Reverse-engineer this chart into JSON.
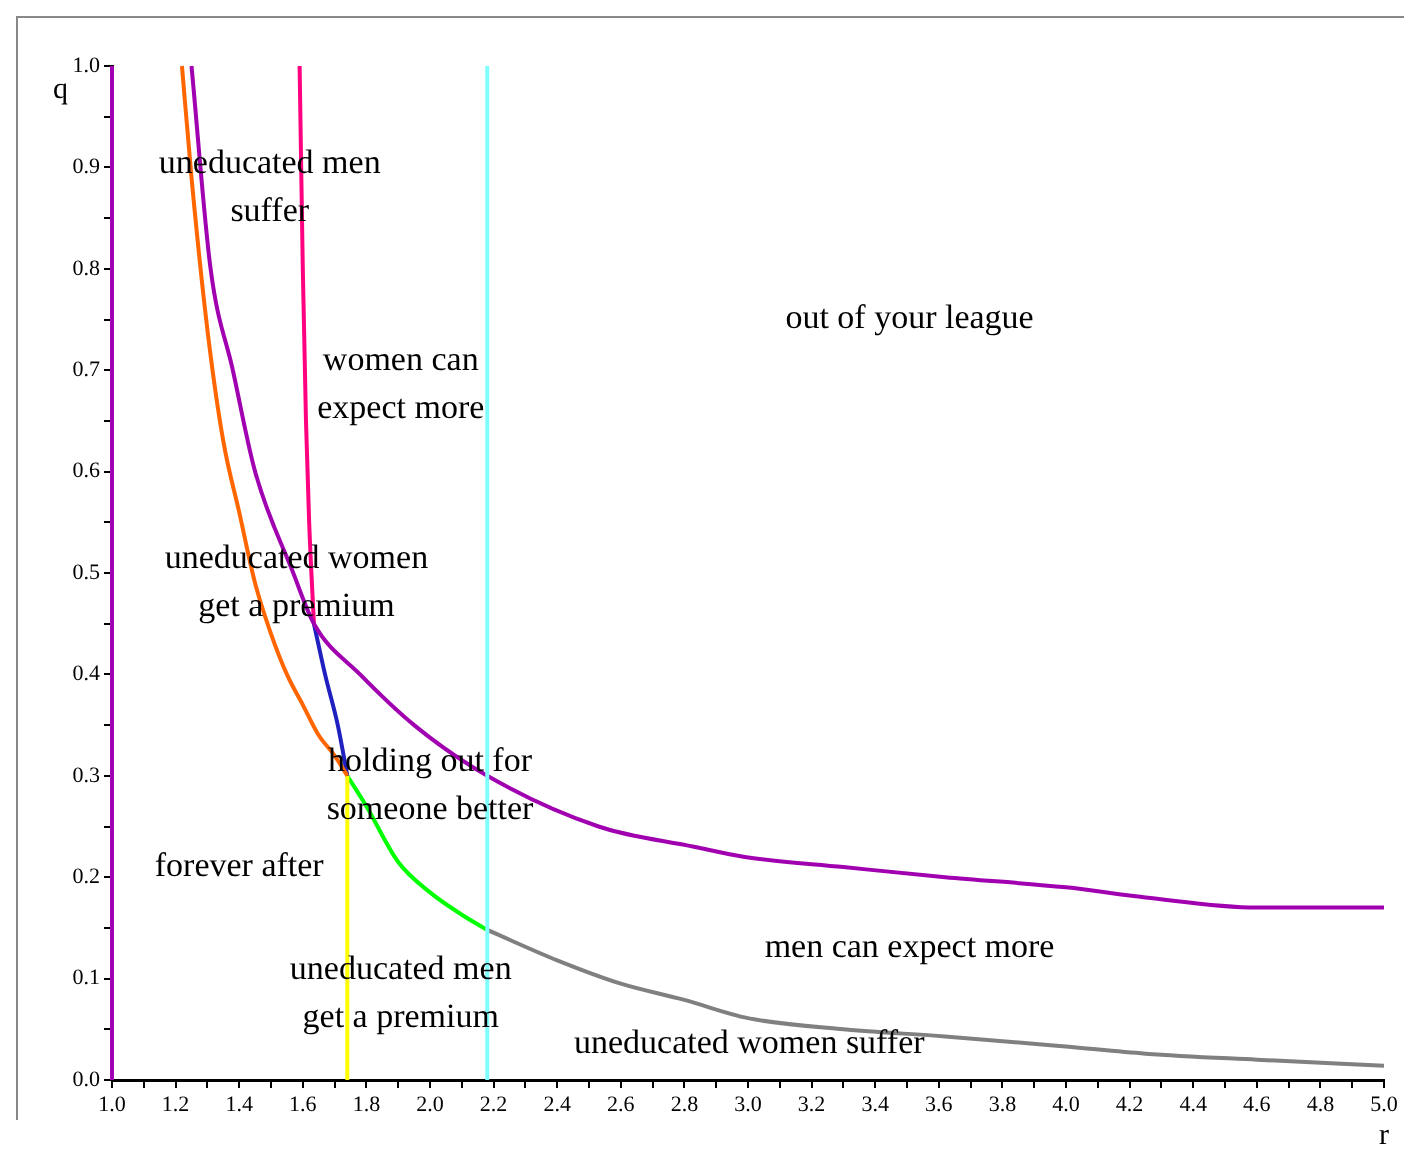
{
  "chart_data": {
    "type": "line",
    "xlabel": "r",
    "ylabel": "q",
    "xlim": [
      1.0,
      5.0
    ],
    "ylim": [
      0.0,
      1.0
    ],
    "xticks": [
      {
        "value": 1.0,
        "label": "1.0"
      },
      {
        "value": 1.1,
        "label": null
      },
      {
        "value": 1.2,
        "label": "1.2"
      },
      {
        "value": 1.3,
        "label": null
      },
      {
        "value": 1.4,
        "label": "1.4"
      },
      {
        "value": 1.5,
        "label": null
      },
      {
        "value": 1.6,
        "label": "1.6"
      },
      {
        "value": 1.7,
        "label": null
      },
      {
        "value": 1.8,
        "label": "1.8"
      },
      {
        "value": 1.9,
        "label": null
      },
      {
        "value": 2.0,
        "label": "2.0"
      },
      {
        "value": 2.1,
        "label": null
      },
      {
        "value": 2.2,
        "label": "2.2"
      },
      {
        "value": 2.3,
        "label": null
      },
      {
        "value": 2.4,
        "label": "2.4"
      },
      {
        "value": 2.5,
        "label": null
      },
      {
        "value": 2.6,
        "label": "2.6"
      },
      {
        "value": 2.7,
        "label": null
      },
      {
        "value": 2.8,
        "label": "2.8"
      },
      {
        "value": 2.9,
        "label": null
      },
      {
        "value": 3.0,
        "label": "3.0"
      },
      {
        "value": 3.1,
        "label": null
      },
      {
        "value": 3.2,
        "label": "3.2"
      },
      {
        "value": 3.3,
        "label": null
      },
      {
        "value": 3.4,
        "label": "3.4"
      },
      {
        "value": 3.5,
        "label": null
      },
      {
        "value": 3.6,
        "label": "3.6"
      },
      {
        "value": 3.7,
        "label": null
      },
      {
        "value": 3.8,
        "label": "3.8"
      },
      {
        "value": 3.9,
        "label": null
      },
      {
        "value": 4.0,
        "label": "4.0"
      },
      {
        "value": 4.1,
        "label": null
      },
      {
        "value": 4.2,
        "label": "4.2"
      },
      {
        "value": 4.3,
        "label": null
      },
      {
        "value": 4.4,
        "label": "4.4"
      },
      {
        "value": 4.5,
        "label": null
      },
      {
        "value": 4.6,
        "label": "4.6"
      },
      {
        "value": 4.7,
        "label": null
      },
      {
        "value": 4.8,
        "label": "4.8"
      },
      {
        "value": 4.9,
        "label": null
      },
      {
        "value": 5.0,
        "label": "5.0"
      }
    ],
    "yticks": [
      {
        "value": 0.0,
        "label": "0.0"
      },
      {
        "value": 0.05,
        "label": null
      },
      {
        "value": 0.1,
        "label": "0.1"
      },
      {
        "value": 0.15,
        "label": null
      },
      {
        "value": 0.2,
        "label": "0.2"
      },
      {
        "value": 0.25,
        "label": null
      },
      {
        "value": 0.3,
        "label": "0.3"
      },
      {
        "value": 0.35,
        "label": null
      },
      {
        "value": 0.4,
        "label": "0.4"
      },
      {
        "value": 0.45,
        "label": null
      },
      {
        "value": 0.5,
        "label": "0.5"
      },
      {
        "value": 0.55,
        "label": null
      },
      {
        "value": 0.6,
        "label": "0.6"
      },
      {
        "value": 0.65,
        "label": null
      },
      {
        "value": 0.7,
        "label": "0.7"
      },
      {
        "value": 0.75,
        "label": null
      },
      {
        "value": 0.8,
        "label": "0.8"
      },
      {
        "value": 0.85,
        "label": null
      },
      {
        "value": 0.9,
        "label": "0.9"
      },
      {
        "value": 0.95,
        "label": null
      },
      {
        "value": 1.0,
        "label": "1.0"
      }
    ],
    "grid": false,
    "legend": false,
    "series": [
      {
        "color": "#a000b0",
        "x": [
          1.0,
          1.0
        ],
        "values": [
          0.0,
          1.0
        ]
      },
      {
        "color": "#80ffff",
        "x": [
          2.18,
          2.18
        ],
        "values": [
          0.0,
          1.0
        ]
      },
      {
        "color": "#ff6600",
        "x": [
          1.22,
          1.25,
          1.3,
          1.35,
          1.4,
          1.45,
          1.5,
          1.55,
          1.6,
          1.65,
          1.7,
          1.74
        ],
        "values": [
          1.0,
          0.89,
          0.74,
          0.63,
          0.56,
          0.49,
          0.44,
          0.4,
          0.37,
          0.34,
          0.32,
          0.3
        ]
      },
      {
        "color": "#a000b0",
        "x": [
          1.25,
          1.31,
          1.38,
          1.45,
          1.57,
          1.635,
          1.78,
          1.95,
          2.18,
          2.53,
          2.83,
          2.99,
          3.3,
          3.62,
          4.0,
          4.25,
          4.6,
          5.0
        ],
        "values": [
          1.0,
          0.8,
          0.7,
          0.6,
          0.5,
          0.45,
          0.4,
          0.35,
          0.3,
          0.25,
          0.23,
          0.22,
          0.21,
          0.2,
          0.19,
          0.18,
          0.17,
          0.17
        ]
      },
      {
        "color": "#ff0080",
        "x": [
          1.59,
          1.6,
          1.61,
          1.62,
          1.635
        ],
        "values": [
          1.0,
          0.8,
          0.65,
          0.55,
          0.45
        ]
      },
      {
        "color": "#2020c0",
        "x": [
          1.635,
          1.67,
          1.71,
          1.74
        ],
        "values": [
          0.45,
          0.4,
          0.35,
          0.3
        ]
      },
      {
        "color": "#ffff00",
        "x": [
          1.74,
          1.74
        ],
        "values": [
          0.0,
          0.3
        ]
      },
      {
        "color": "#00ff00",
        "x": [
          1.74,
          1.8,
          1.9,
          2.0,
          2.1,
          2.18
        ],
        "values": [
          0.3,
          0.27,
          0.215,
          0.185,
          0.163,
          0.148
        ]
      },
      {
        "color": "#808080",
        "x": [
          2.18,
          2.4,
          2.6,
          2.8,
          3.0,
          3.3,
          3.62,
          4.0,
          4.25,
          4.6,
          5.0
        ],
        "values": [
          0.148,
          0.118,
          0.095,
          0.079,
          0.061,
          0.05,
          0.043,
          0.033,
          0.026,
          0.02,
          0.014
        ]
      }
    ],
    "annotations": [
      "uneducated men\nsuffer",
      "women can\nexpect more",
      "out of your league",
      "uneducated women\nget a premium",
      "holding out for\nsomeone better",
      "forever after",
      "uneducated men\nget a premium",
      "men can expect more",
      "uneducated women suffer"
    ]
  }
}
